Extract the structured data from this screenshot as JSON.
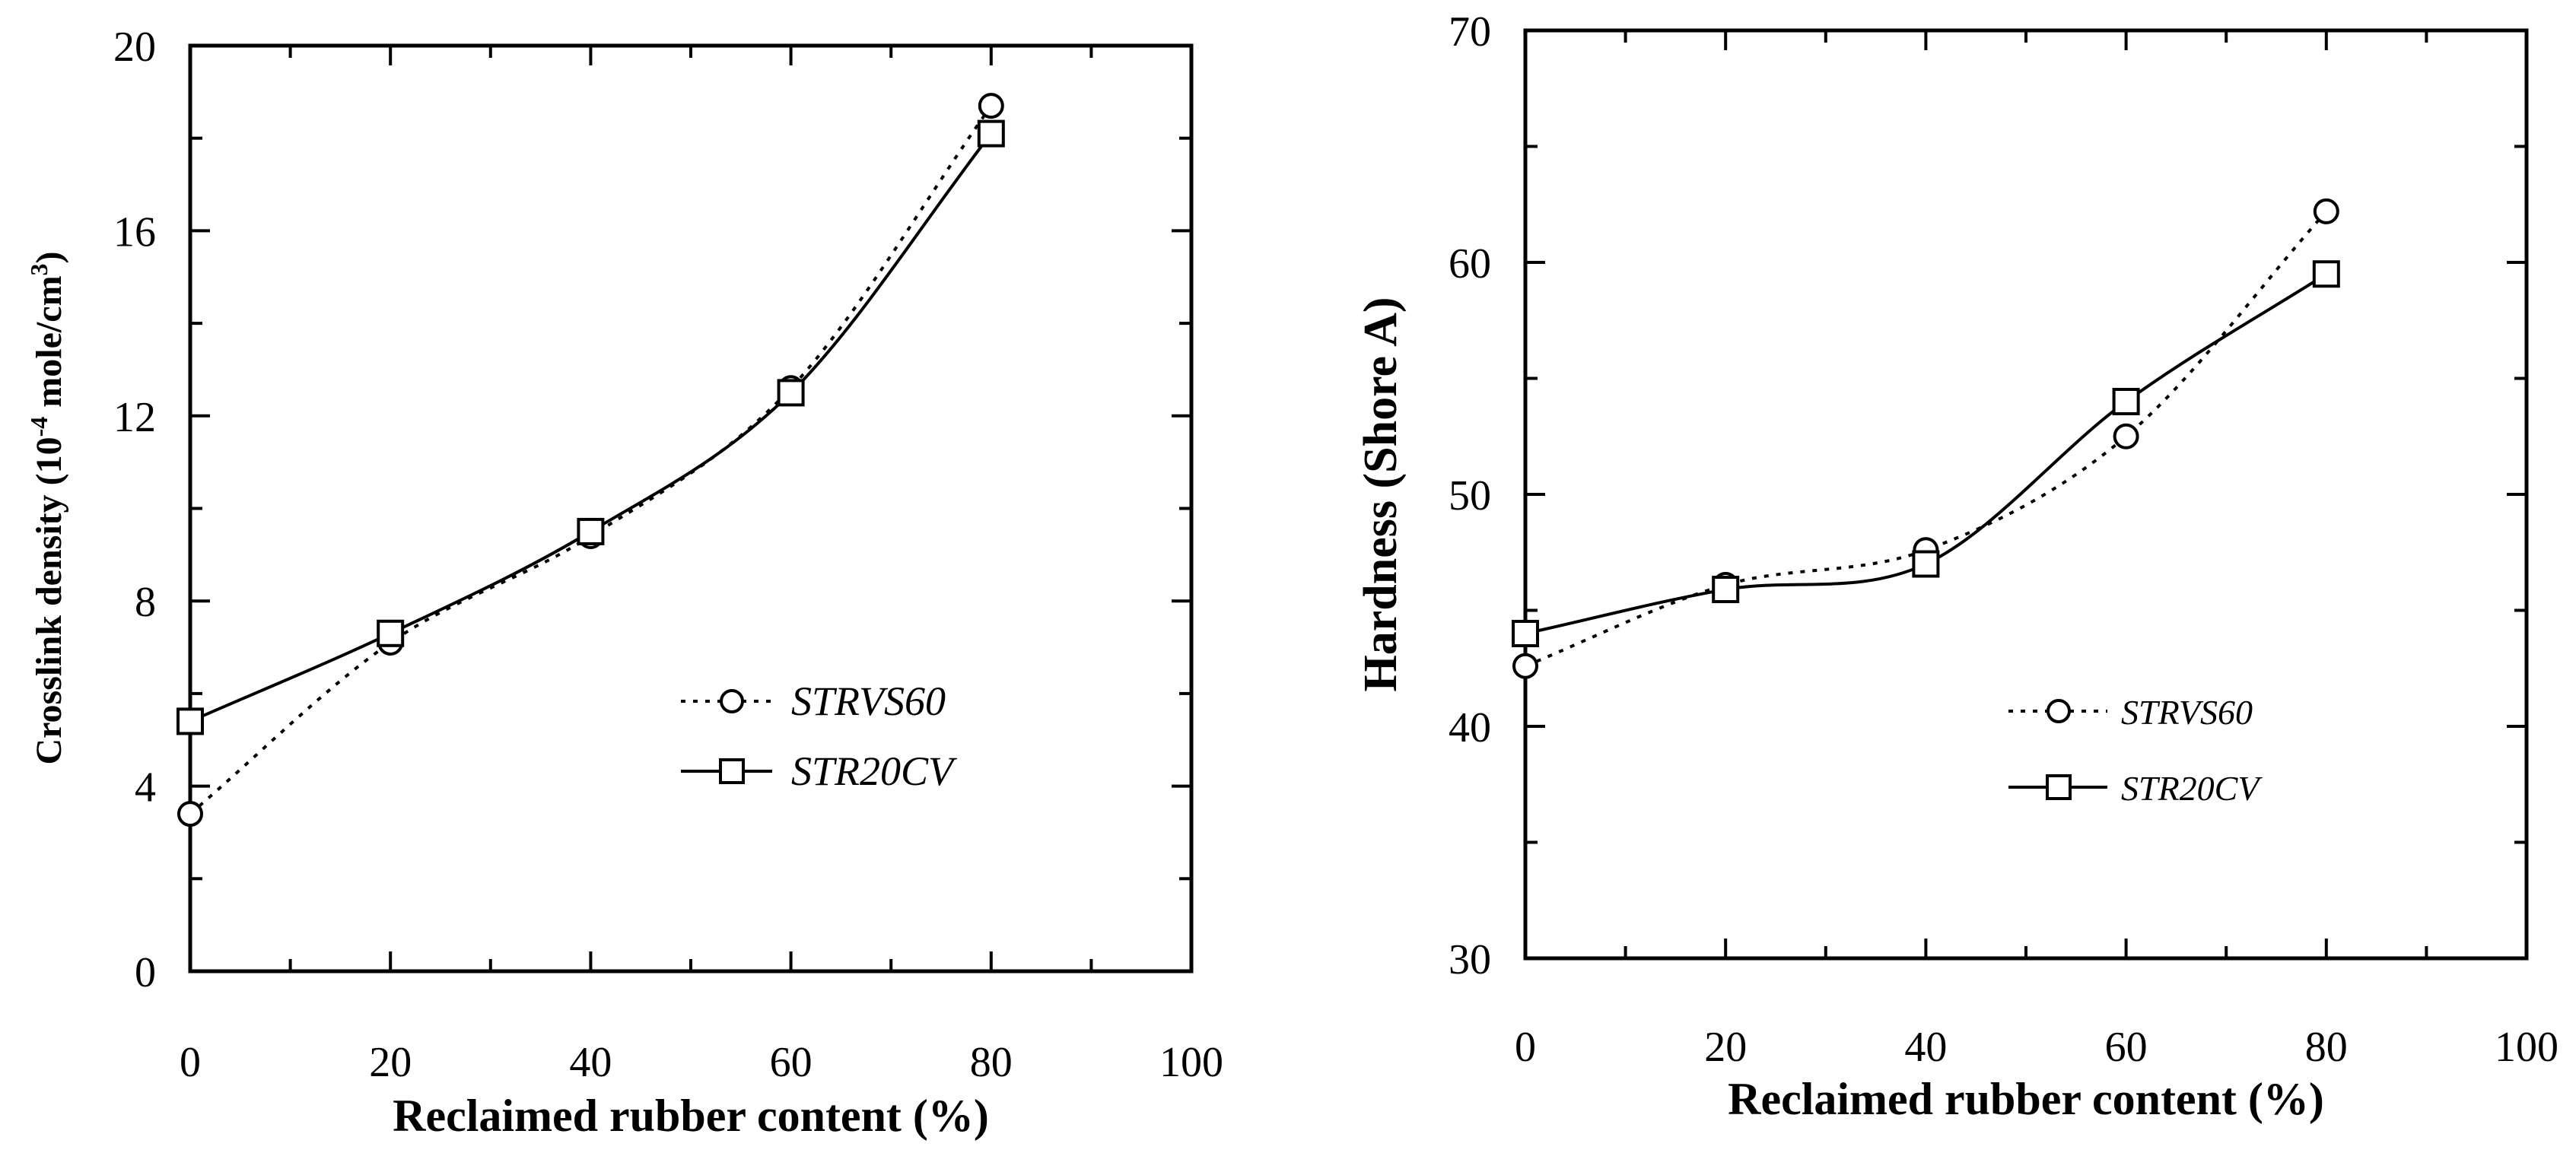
{
  "chart_data": [
    {
      "type": "line",
      "xlabel": "Reclaimed rubber content (%)",
      "ylabel": "Crosslink density (10",
      "ylabel_exp1": "-4",
      "ylabel_mid": " mole/cm",
      "ylabel_exp2": "3",
      "ylabel_end": ")",
      "xlim": [
        0,
        100
      ],
      "ylim": [
        0,
        20
      ],
      "xticks": [
        0,
        20,
        40,
        60,
        80,
        100
      ],
      "yticks": [
        0,
        4,
        8,
        12,
        16,
        20
      ],
      "grid": false,
      "legend_position": "center-right",
      "series": [
        {
          "name": "STRVS60",
          "marker": "circle",
          "line_style": "dotted",
          "x": [
            0,
            20,
            40,
            60,
            80
          ],
          "y": [
            3.4,
            7.1,
            9.4,
            12.6,
            18.7
          ]
        },
        {
          "name": "STR20CV",
          "marker": "square",
          "line_style": "solid",
          "x": [
            0,
            20,
            40,
            60,
            80
          ],
          "y": [
            5.4,
            7.3,
            9.5,
            12.5,
            18.1
          ]
        }
      ]
    },
    {
      "type": "line",
      "xlabel": "Reclaimed rubber content (%)",
      "ylabel": "Hardness (Shore A)",
      "xlim": [
        0,
        100
      ],
      "ylim": [
        30,
        70
      ],
      "xticks": [
        0,
        20,
        40,
        60,
        80,
        100
      ],
      "yticks": [
        30,
        40,
        50,
        60,
        70
      ],
      "grid": false,
      "legend_position": "center-right",
      "series": [
        {
          "name": "STRVS60",
          "marker": "circle",
          "line_style": "dotted",
          "x": [
            0,
            20,
            40,
            60,
            80
          ],
          "y": [
            42.6,
            46.1,
            47.6,
            52.5,
            62.2
          ]
        },
        {
          "name": "STR20CV",
          "marker": "square",
          "line_style": "solid",
          "x": [
            0,
            20,
            40,
            60,
            80
          ],
          "y": [
            44.0,
            45.9,
            47.0,
            54.0,
            59.5
          ]
        }
      ]
    }
  ]
}
